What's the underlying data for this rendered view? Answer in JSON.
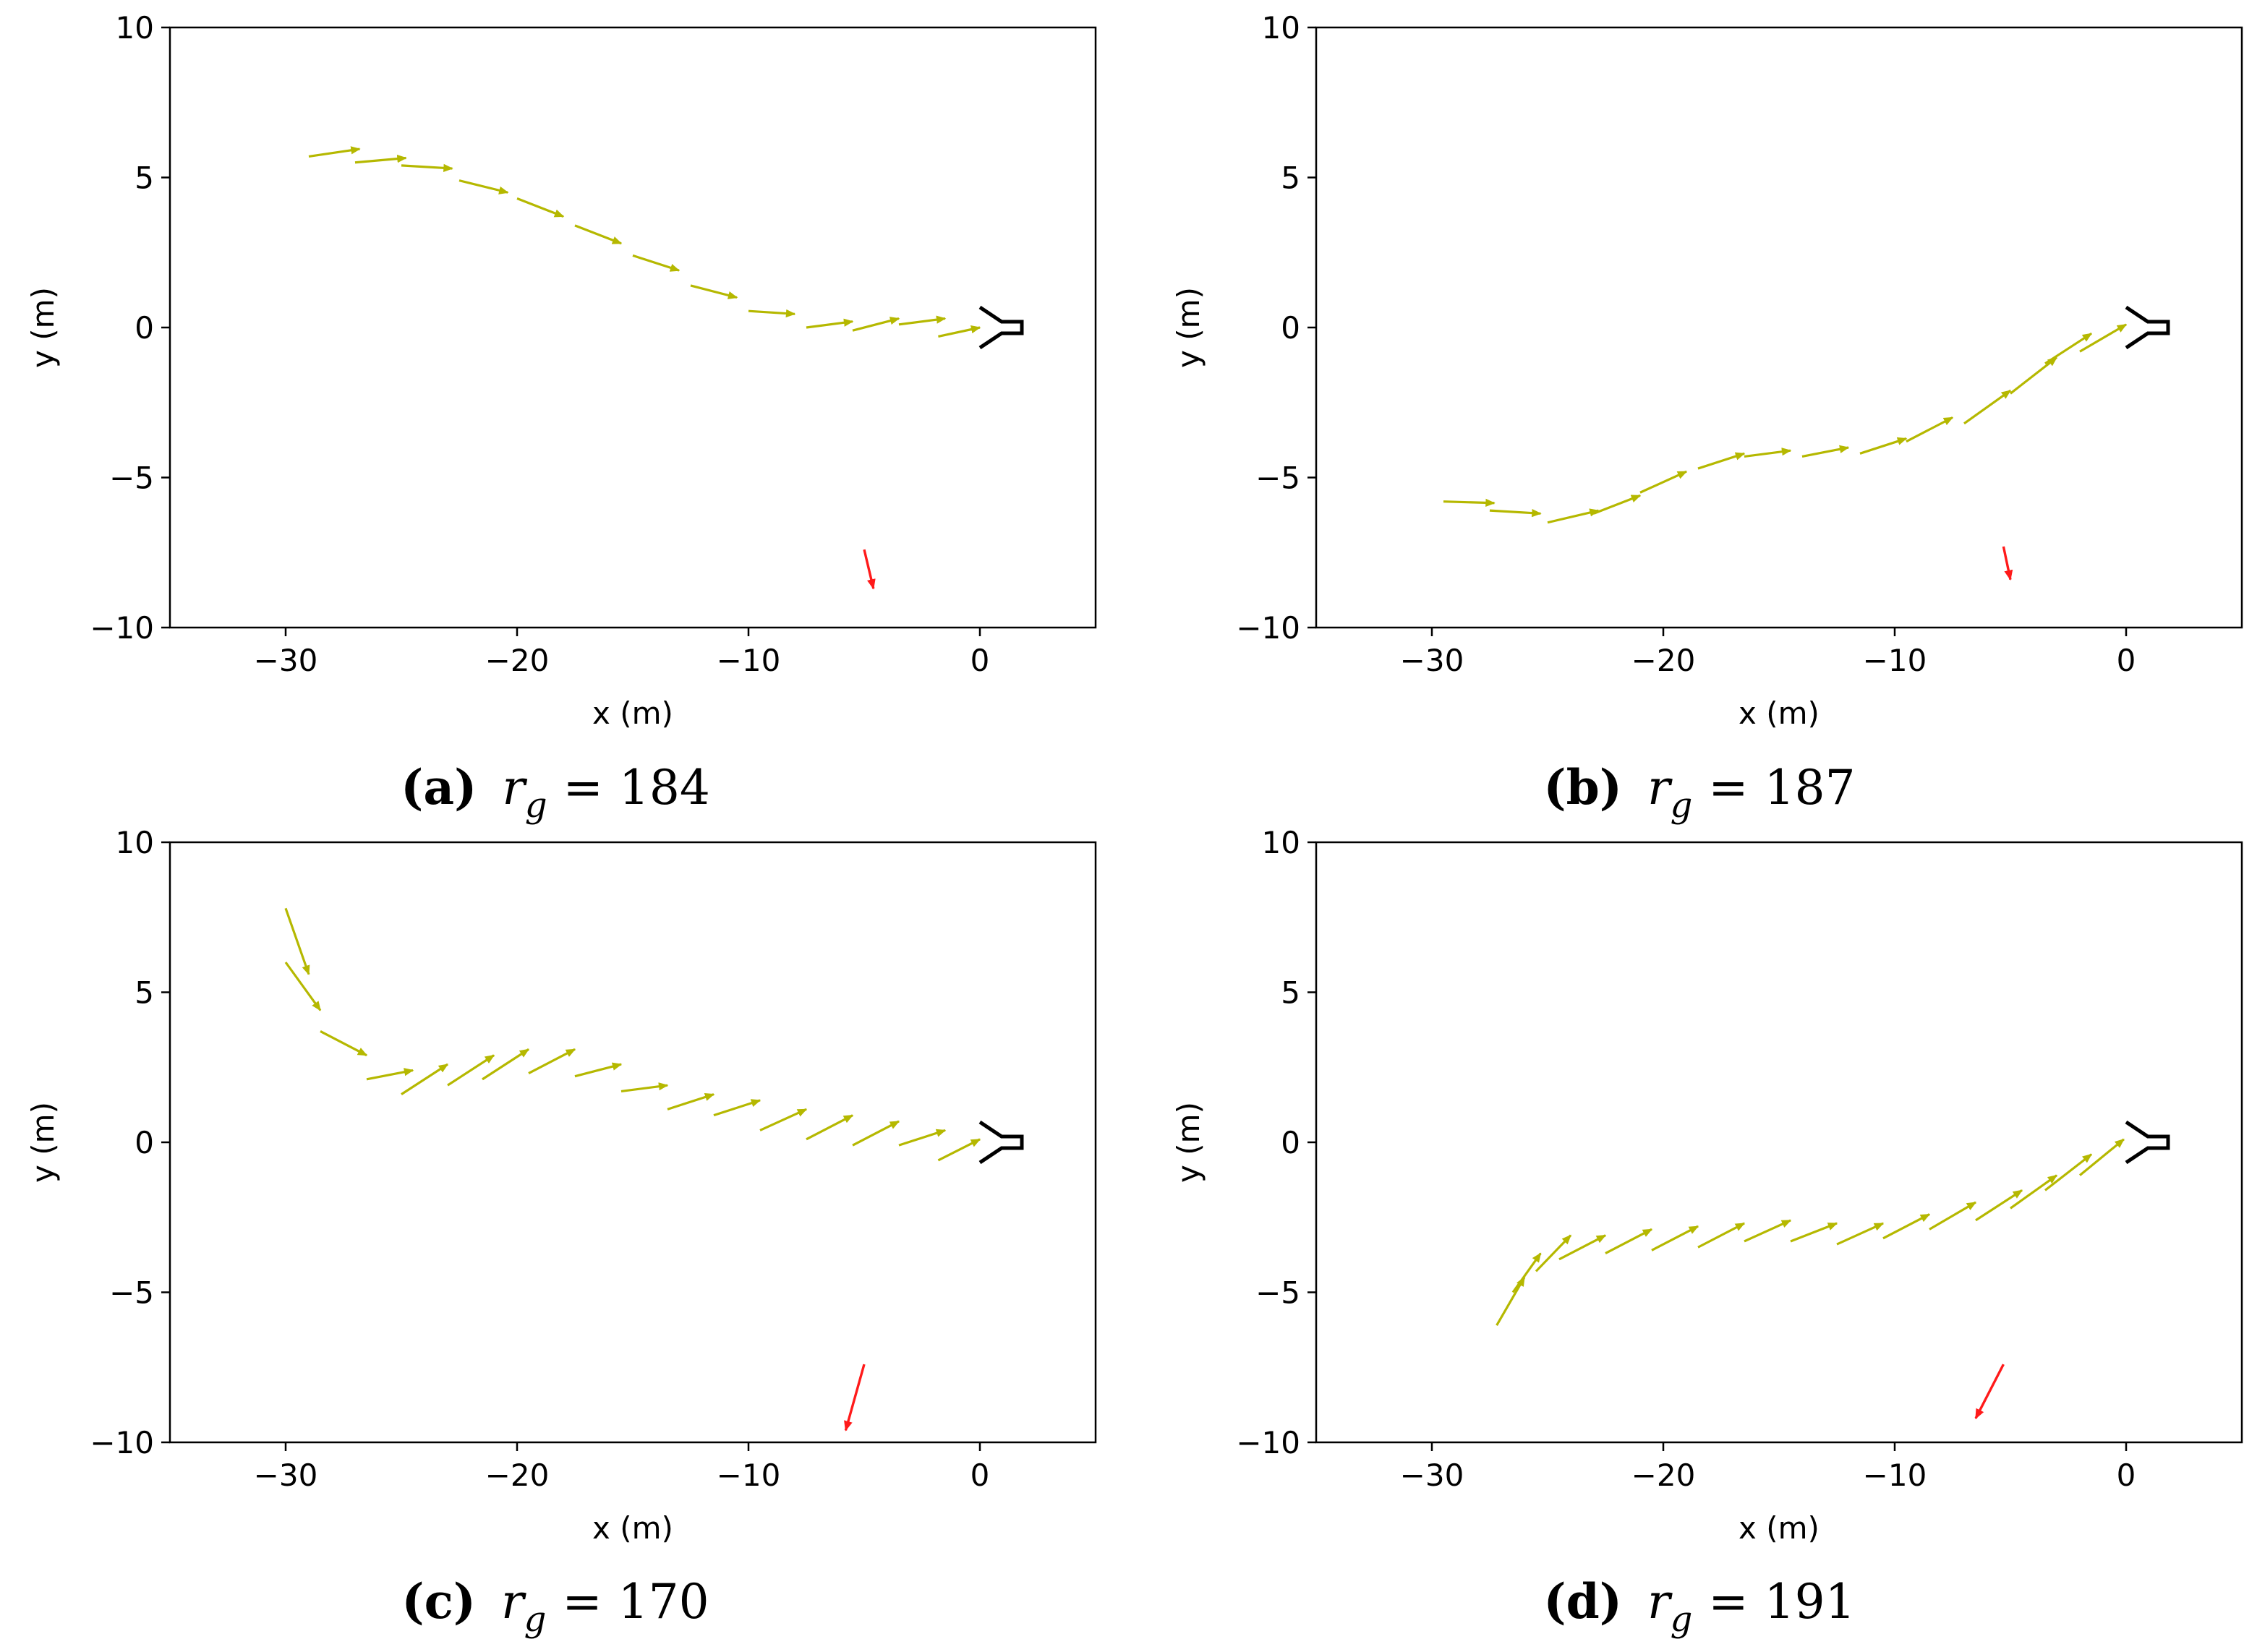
{
  "colors": {
    "trajectory": "#b5b800",
    "wind": "#ff1a1a",
    "axis": "#000000"
  },
  "icons": {
    "trajectory_marker": "arrow-head",
    "goal_marker": "fork-gate-icon"
  },
  "chart_data": [
    {
      "type": "quiver",
      "panel_tag": "(a)",
      "caption_var": "r",
      "caption_sub": "g",
      "caption_eq": "=",
      "caption_value": "184",
      "xlabel": "x (m)",
      "ylabel": "y (m)",
      "xlim": [
        -35,
        5
      ],
      "ylim": [
        -10,
        10
      ],
      "xticks": [
        -30,
        -20,
        -10,
        0
      ],
      "xtick_labels": [
        "−30",
        "−20",
        "−10",
        "0"
      ],
      "yticks": [
        -10,
        -5,
        0,
        5,
        10
      ],
      "ytick_labels": [
        "−10",
        "−5",
        "0",
        "5",
        "10"
      ],
      "goal": [
        0,
        0
      ],
      "trajectory": [
        {
          "x": -29.0,
          "y": 5.7,
          "dx": 2.2,
          "dy": 0.25
        },
        {
          "x": -27.0,
          "y": 5.5,
          "dx": 2.2,
          "dy": 0.15
        },
        {
          "x": -25.0,
          "y": 5.4,
          "dx": 2.2,
          "dy": -0.1
        },
        {
          "x": -22.5,
          "y": 4.9,
          "dx": 2.1,
          "dy": -0.4
        },
        {
          "x": -20.0,
          "y": 4.3,
          "dx": 2.0,
          "dy": -0.6
        },
        {
          "x": -17.5,
          "y": 3.4,
          "dx": 2.0,
          "dy": -0.6
        },
        {
          "x": -15.0,
          "y": 2.4,
          "dx": 2.0,
          "dy": -0.5
        },
        {
          "x": -12.5,
          "y": 1.4,
          "dx": 2.0,
          "dy": -0.4
        },
        {
          "x": -10.0,
          "y": 0.55,
          "dx": 2.0,
          "dy": -0.1
        },
        {
          "x": -7.5,
          "y": 0.0,
          "dx": 2.0,
          "dy": 0.2
        },
        {
          "x": -5.5,
          "y": -0.1,
          "dx": 2.0,
          "dy": 0.4
        },
        {
          "x": -3.5,
          "y": 0.1,
          "dx": 2.0,
          "dy": 0.2
        },
        {
          "x": -1.8,
          "y": -0.3,
          "dx": 1.8,
          "dy": 0.3
        }
      ],
      "wind": {
        "x": -5.0,
        "y": -7.4,
        "dx": 0.4,
        "dy": -1.3
      }
    },
    {
      "type": "quiver",
      "panel_tag": "(b)",
      "caption_var": "r",
      "caption_sub": "g",
      "caption_eq": "=",
      "caption_value": "187",
      "xlabel": "x (m)",
      "ylabel": "y (m)",
      "xlim": [
        -35,
        5
      ],
      "ylim": [
        -10,
        10
      ],
      "xticks": [
        -30,
        -20,
        -10,
        0
      ],
      "xtick_labels": [
        "−30",
        "−20",
        "−10",
        "0"
      ],
      "yticks": [
        -10,
        -5,
        0,
        5,
        10
      ],
      "ytick_labels": [
        "−10",
        "−5",
        "0",
        "5",
        "10"
      ],
      "goal": [
        0,
        0
      ],
      "trajectory": [
        {
          "x": -29.5,
          "y": -5.8,
          "dx": 2.2,
          "dy": -0.05
        },
        {
          "x": -27.5,
          "y": -6.1,
          "dx": 2.2,
          "dy": -0.1
        },
        {
          "x": -25.0,
          "y": -6.5,
          "dx": 2.2,
          "dy": 0.4
        },
        {
          "x": -23.0,
          "y": -6.2,
          "dx": 2.0,
          "dy": 0.6
        },
        {
          "x": -21.0,
          "y": -5.5,
          "dx": 2.0,
          "dy": 0.7
        },
        {
          "x": -18.5,
          "y": -4.7,
          "dx": 2.0,
          "dy": 0.5
        },
        {
          "x": -16.5,
          "y": -4.3,
          "dx": 2.0,
          "dy": 0.2
        },
        {
          "x": -14.0,
          "y": -4.3,
          "dx": 2.0,
          "dy": 0.3
        },
        {
          "x": -11.5,
          "y": -4.2,
          "dx": 2.0,
          "dy": 0.5
        },
        {
          "x": -9.5,
          "y": -3.8,
          "dx": 2.0,
          "dy": 0.8
        },
        {
          "x": -7.0,
          "y": -3.2,
          "dx": 2.0,
          "dy": 1.1
        },
        {
          "x": -5.0,
          "y": -2.2,
          "dx": 2.0,
          "dy": 1.2
        },
        {
          "x": -3.5,
          "y": -1.2,
          "dx": 2.0,
          "dy": 1.0
        },
        {
          "x": -2.0,
          "y": -0.8,
          "dx": 2.0,
          "dy": 0.9
        }
      ],
      "wind": {
        "x": -5.3,
        "y": -7.3,
        "dx": 0.3,
        "dy": -1.1
      }
    },
    {
      "type": "quiver",
      "panel_tag": "(c)",
      "caption_var": "r",
      "caption_sub": "g",
      "caption_eq": "=",
      "caption_value": "170",
      "xlabel": "x (m)",
      "ylabel": "y (m)",
      "xlim": [
        -35,
        5
      ],
      "ylim": [
        -10,
        10
      ],
      "xticks": [
        -30,
        -20,
        -10,
        0
      ],
      "xtick_labels": [
        "−30",
        "−20",
        "−10",
        "0"
      ],
      "yticks": [
        -10,
        -5,
        0,
        5,
        10
      ],
      "ytick_labels": [
        "−10",
        "−5",
        "0",
        "5",
        "10"
      ],
      "goal": [
        0,
        0
      ],
      "trajectory": [
        {
          "x": -30.0,
          "y": 7.8,
          "dx": 1.0,
          "dy": -2.2
        },
        {
          "x": -30.0,
          "y": 6.0,
          "dx": 1.5,
          "dy": -1.6
        },
        {
          "x": -28.5,
          "y": 3.7,
          "dx": 2.0,
          "dy": -0.8
        },
        {
          "x": -26.5,
          "y": 2.1,
          "dx": 2.0,
          "dy": 0.3
        },
        {
          "x": -25.0,
          "y": 1.6,
          "dx": 2.0,
          "dy": 1.0
        },
        {
          "x": -23.0,
          "y": 1.9,
          "dx": 2.0,
          "dy": 1.0
        },
        {
          "x": -21.5,
          "y": 2.1,
          "dx": 2.0,
          "dy": 1.0
        },
        {
          "x": -19.5,
          "y": 2.3,
          "dx": 2.0,
          "dy": 0.8
        },
        {
          "x": -17.5,
          "y": 2.2,
          "dx": 2.0,
          "dy": 0.4
        },
        {
          "x": -15.5,
          "y": 1.7,
          "dx": 2.0,
          "dy": 0.2
        },
        {
          "x": -13.5,
          "y": 1.1,
          "dx": 2.0,
          "dy": 0.5
        },
        {
          "x": -11.5,
          "y": 0.9,
          "dx": 2.0,
          "dy": 0.5
        },
        {
          "x": -9.5,
          "y": 0.4,
          "dx": 2.0,
          "dy": 0.7
        },
        {
          "x": -7.5,
          "y": 0.1,
          "dx": 2.0,
          "dy": 0.8
        },
        {
          "x": -5.5,
          "y": -0.1,
          "dx": 2.0,
          "dy": 0.8
        },
        {
          "x": -3.5,
          "y": -0.1,
          "dx": 2.0,
          "dy": 0.5
        },
        {
          "x": -1.8,
          "y": -0.6,
          "dx": 1.8,
          "dy": 0.7
        }
      ],
      "wind": {
        "x": -5.0,
        "y": -7.4,
        "dx": -0.8,
        "dy": -2.2
      }
    },
    {
      "type": "quiver",
      "panel_tag": "(d)",
      "caption_var": "r",
      "caption_sub": "g",
      "caption_eq": "=",
      "caption_value": "191",
      "xlabel": "x (m)",
      "ylabel": "y (m)",
      "xlim": [
        -35,
        5
      ],
      "ylim": [
        -10,
        10
      ],
      "xticks": [
        -30,
        -20,
        -10,
        0
      ],
      "xtick_labels": [
        "−30",
        "−20",
        "−10",
        "0"
      ],
      "yticks": [
        -10,
        -5,
        0,
        5,
        10
      ],
      "ytick_labels": [
        "−10",
        "−5",
        "0",
        "5",
        "10"
      ],
      "goal": [
        0,
        0
      ],
      "trajectory": [
        {
          "x": -27.2,
          "y": -6.1,
          "dx": 1.2,
          "dy": 1.6
        },
        {
          "x": -26.5,
          "y": -5.0,
          "dx": 1.2,
          "dy": 1.3
        },
        {
          "x": -25.5,
          "y": -4.3,
          "dx": 1.5,
          "dy": 1.2
        },
        {
          "x": -24.5,
          "y": -3.9,
          "dx": 2.0,
          "dy": 0.8
        },
        {
          "x": -22.5,
          "y": -3.7,
          "dx": 2.0,
          "dy": 0.8
        },
        {
          "x": -20.5,
          "y": -3.6,
          "dx": 2.0,
          "dy": 0.8
        },
        {
          "x": -18.5,
          "y": -3.5,
          "dx": 2.0,
          "dy": 0.8
        },
        {
          "x": -16.5,
          "y": -3.3,
          "dx": 2.0,
          "dy": 0.7
        },
        {
          "x": -14.5,
          "y": -3.3,
          "dx": 2.0,
          "dy": 0.6
        },
        {
          "x": -12.5,
          "y": -3.4,
          "dx": 2.0,
          "dy": 0.7
        },
        {
          "x": -10.5,
          "y": -3.2,
          "dx": 2.0,
          "dy": 0.8
        },
        {
          "x": -8.5,
          "y": -2.9,
          "dx": 2.0,
          "dy": 0.9
        },
        {
          "x": -6.5,
          "y": -2.6,
          "dx": 2.0,
          "dy": 1.0
        },
        {
          "x": -5.0,
          "y": -2.2,
          "dx": 2.0,
          "dy": 1.1
        },
        {
          "x": -3.5,
          "y": -1.6,
          "dx": 2.0,
          "dy": 1.2
        },
        {
          "x": -2.0,
          "y": -1.1,
          "dx": 1.9,
          "dy": 1.2
        }
      ],
      "wind": {
        "x": -5.3,
        "y": -7.4,
        "dx": -1.2,
        "dy": -1.8
      }
    }
  ]
}
